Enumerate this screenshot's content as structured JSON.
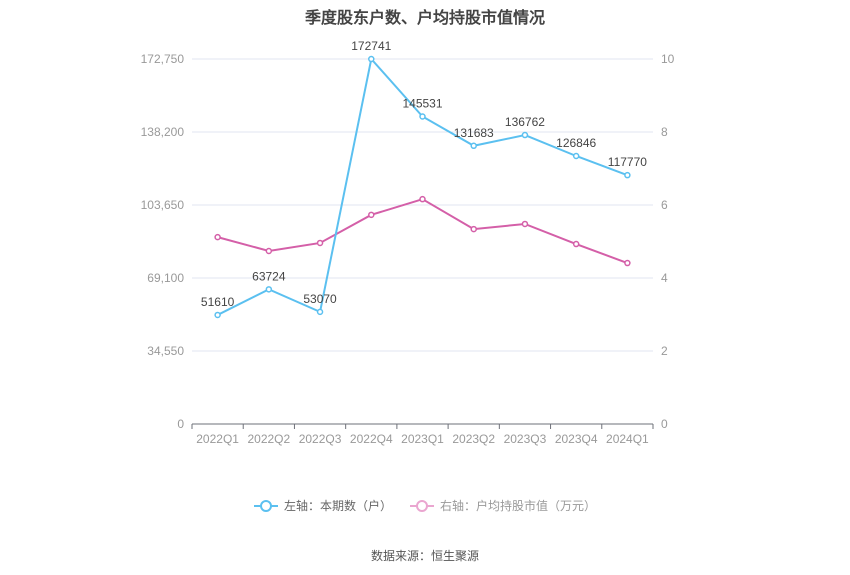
{
  "title": "季度股东户数、户均持股市值情况",
  "source": "数据来源：恒生聚源",
  "legend": {
    "left": "左轴：本期数（户）",
    "right": "右轴：户均持股市值（万元）"
  },
  "colors": {
    "left_series": "#5bc0f0",
    "right_series": "#d45fa8",
    "grid": "#e0e6f1",
    "axis": "#6e7079"
  },
  "chart_data": {
    "type": "line",
    "title": "季度股东户数、户均持股市值情况",
    "categories": [
      "2022Q1",
      "2022Q2",
      "2022Q3",
      "2022Q4",
      "2023Q1",
      "2023Q2",
      "2023Q3",
      "2023Q4",
      "2024Q1"
    ],
    "series": [
      {
        "name": "左轴：本期数（户）",
        "axis": "left",
        "values": [
          51610,
          63724,
          53070,
          172741,
          145531,
          131683,
          136762,
          126846,
          117770
        ]
      },
      {
        "name": "右轴：户均持股市值（万元）",
        "axis": "right",
        "values": [
          5.12,
          4.74,
          4.96,
          5.73,
          6.16,
          5.34,
          5.48,
          4.93,
          4.41
        ]
      }
    ],
    "y_left": {
      "ticks": [
        "0",
        "34,550",
        "69,100",
        "103,650",
        "138,200",
        "172,750"
      ],
      "ylim": [
        0,
        172750
      ]
    },
    "y_right": {
      "ticks": [
        "0",
        "2",
        "4",
        "6",
        "8",
        "10"
      ],
      "ylim": [
        0,
        10
      ]
    },
    "grid": true,
    "legend_position": "bottom"
  }
}
